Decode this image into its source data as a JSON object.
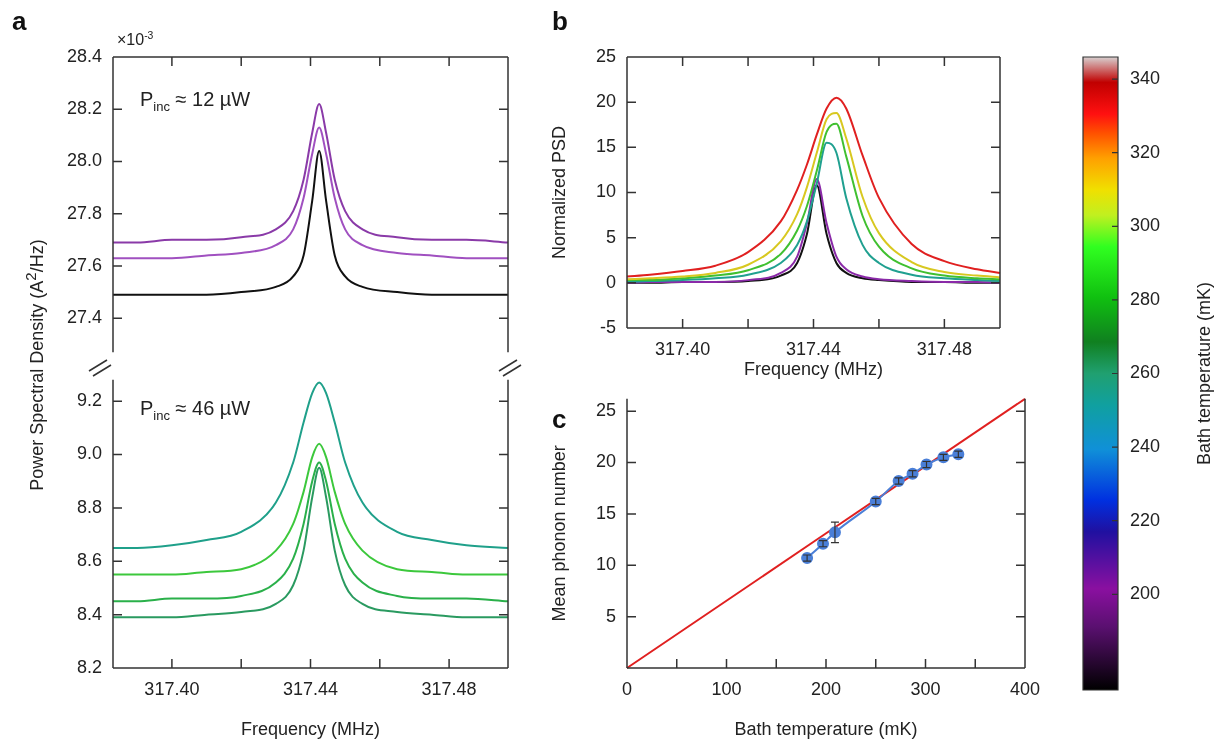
{
  "chart_data": [
    {
      "type": "line",
      "title": "a",
      "ylabel": "Power Spectral Density (A$^{2}$/Hz)",
      "annotations": [
        "P$_{inc}$ ≈ 12 µW",
        "×10$^{-3}$"
      ],
      "marker": "none",
      "legend": false,
      "tick_labels": "y",
      "xlim": [
        317.383,
        317.497
      ],
      "xticks": [
        {
          "value": 317.4,
          "label": null
        },
        {
          "value": 317.42,
          "label": null
        },
        {
          "value": 317.44,
          "label": null
        },
        {
          "value": 317.46,
          "label": null
        },
        {
          "value": 317.48,
          "label": null
        }
      ],
      "ylim": [
        27.27,
        28.4
      ],
      "yticks": [
        27.4,
        27.6,
        27.8,
        {
          "value": 28,
          "label": "28.0"
        },
        28.2,
        28.4
      ],
      "x": [
        317.383,
        317.39,
        317.4,
        317.41,
        317.42,
        317.43,
        317.435,
        317.438,
        317.4405,
        317.4425,
        317.4445,
        317.447,
        317.45,
        317.455,
        317.465,
        317.475,
        317.485,
        317.497
      ],
      "series": [
        {
          "color": "#8a3aa8",
          "values": [
            27.69,
            27.69,
            27.7,
            27.7,
            27.71,
            27.74,
            27.81,
            27.93,
            28.11,
            28.22,
            28.11,
            27.93,
            27.81,
            27.74,
            27.71,
            27.7,
            27.7,
            27.69
          ]
        },
        {
          "color": "#a050c0",
          "values": [
            27.63,
            27.63,
            27.63,
            27.64,
            27.65,
            27.68,
            27.74,
            27.86,
            28.03,
            28.13,
            28.03,
            27.86,
            27.74,
            27.68,
            27.65,
            27.64,
            27.63,
            27.63
          ]
        },
        {
          "color": "#111111",
          "values": [
            27.49,
            27.49,
            27.49,
            27.49,
            27.5,
            27.52,
            27.56,
            27.64,
            27.85,
            28.04,
            27.85,
            27.64,
            27.56,
            27.52,
            27.5,
            27.49,
            27.49,
            27.49
          ]
        }
      ]
    },
    {
      "type": "line",
      "xlabel": "Frequency (MHz)",
      "annotations": [
        "P$_{inc}$ ≈ 46 µW"
      ],
      "marker": "none",
      "legend": false,
      "xlim": [
        317.383,
        317.497
      ],
      "xticks": [
        {
          "value": 317.4,
          "label": "317.40"
        },
        {
          "value": 317.42,
          "label": null
        },
        317.44,
        {
          "value": 317.46,
          "label": null
        },
        317.48
      ],
      "ylim": [
        8.2,
        9.28
      ],
      "yticks": [
        8.2,
        8.4,
        8.6,
        8.8,
        {
          "value": 9,
          "label": "9.0"
        },
        9.2
      ],
      "x": [
        317.383,
        317.39,
        317.4,
        317.41,
        317.42,
        317.43,
        317.435,
        317.438,
        317.4405,
        317.4425,
        317.4445,
        317.447,
        317.45,
        317.455,
        317.465,
        317.475,
        317.485,
        317.497
      ],
      "series": [
        {
          "color": "#1fa08a",
          "values": [
            8.65,
            8.65,
            8.66,
            8.68,
            8.71,
            8.82,
            8.97,
            9.12,
            9.23,
            9.27,
            9.23,
            9.12,
            8.97,
            8.82,
            8.71,
            8.68,
            8.66,
            8.65
          ]
        },
        {
          "color": "#3cc83c",
          "values": [
            8.55,
            8.55,
            8.55,
            8.56,
            8.57,
            8.64,
            8.74,
            8.86,
            8.99,
            9.04,
            8.99,
            8.86,
            8.74,
            8.64,
            8.57,
            8.56,
            8.55,
            8.55
          ]
        },
        {
          "color": "#2ab04a",
          "values": [
            8.45,
            8.45,
            8.46,
            8.46,
            8.47,
            8.52,
            8.61,
            8.74,
            8.9,
            8.97,
            8.9,
            8.74,
            8.61,
            8.52,
            8.47,
            8.46,
            8.46,
            8.45
          ]
        },
        {
          "color": "#2a9a60",
          "values": [
            8.39,
            8.39,
            8.39,
            8.4,
            8.41,
            8.44,
            8.51,
            8.64,
            8.84,
            8.95,
            8.84,
            8.64,
            8.51,
            8.44,
            8.41,
            8.4,
            8.39,
            8.39
          ]
        }
      ]
    },
    {
      "type": "line",
      "title": "b",
      "xlabel": "Frequency (MHz)",
      "ylabel": "Normalized PSD",
      "clabel": "Bath temperature (mK)",
      "clim": [
        174,
        346
      ],
      "cticks": [
        200,
        220,
        240,
        260,
        280,
        300,
        320,
        340
      ],
      "marker": "none",
      "legend": false,
      "xlim": [
        317.383,
        317.497
      ],
      "xticks": [
        {
          "value": 317.4,
          "label": "317.40"
        },
        {
          "value": 317.42,
          "label": null
        },
        317.44,
        {
          "value": 317.46,
          "label": null
        },
        317.48
      ],
      "ylim": [
        -5,
        25
      ],
      "yticks": [
        -5,
        0,
        5,
        10,
        15,
        20,
        25
      ],
      "x": [
        317.383,
        317.39,
        317.4,
        317.41,
        317.42,
        317.43,
        317.435,
        317.438,
        317.441,
        317.444,
        317.447,
        317.45,
        317.455,
        317.46,
        317.47,
        317.48,
        317.49,
        317.497
      ],
      "series": [
        {
          "color": "#e02020",
          "values": [
            0.7,
            0.9,
            1.3,
            1.9,
            3.4,
            6.8,
            10.3,
            13.1,
            16.4,
            19.3,
            20.5,
            19.3,
            14.1,
            9.4,
            4.3,
            2.4,
            1.5,
            1.1
          ]
        },
        {
          "color": "#d8c820",
          "values": [
            0.4,
            0.5,
            0.7,
            1.1,
            2.0,
            4.6,
            7.6,
            10.6,
            14.4,
            18.1,
            18.8,
            16.0,
            9.5,
            5.5,
            2.3,
            1.2,
            0.8,
            0.6
          ]
        },
        {
          "color": "#40c030",
          "values": [
            0.3,
            0.3,
            0.5,
            0.8,
            1.4,
            3.2,
            5.8,
            8.5,
            12.4,
            16.7,
            17.6,
            14.0,
            7.4,
            4.0,
            1.6,
            0.8,
            0.5,
            0.4
          ]
        },
        {
          "color": "#20a090",
          "values": [
            0.1,
            0.2,
            0.3,
            0.5,
            0.9,
            2.2,
            4.2,
            6.8,
            11.0,
            15.5,
            14.4,
            9.4,
            4.2,
            2.2,
            0.9,
            0.5,
            0.3,
            0.2
          ]
        },
        {
          "color": "#8a2aa8",
          "values": [
            0.0,
            0.1,
            0.1,
            0.1,
            0.3,
            1.1,
            2.9,
            6.6,
            11.5,
            6.6,
            2.9,
            1.5,
            0.7,
            0.4,
            0.2,
            0.1,
            0.1,
            0.0
          ]
        },
        {
          "color": "#111111",
          "values": [
            0.0,
            0.0,
            0.1,
            0.1,
            0.2,
            0.8,
            2.2,
            5.4,
            10.8,
            5.4,
            2.2,
            1.1,
            0.5,
            0.3,
            0.1,
            0.1,
            0.0,
            0.0
          ]
        }
      ]
    },
    {
      "type": "line",
      "title": "c",
      "xlabel": "Bath temperature (mK)",
      "ylabel": "Mean phonon number",
      "legend": false,
      "xlim": [
        0,
        400
      ],
      "xticks": [
        0,
        {
          "value": 50,
          "label": null
        },
        100,
        {
          "value": 150,
          "label": null
        },
        200,
        {
          "value": 250,
          "label": null
        },
        300,
        {
          "value": 350,
          "label": null
        },
        400
      ],
      "ylim": [
        0,
        26.2
      ],
      "yticks": [
        5,
        10,
        15,
        20,
        25
      ],
      "series": [
        {
          "marker": "circle",
          "color": "#4a7fd8",
          "x": [
            181,
            197,
            209,
            250,
            273,
            287,
            301,
            318,
            333
          ],
          "values": [
            10.7,
            12.1,
            13.2,
            16.2,
            18.2,
            18.9,
            19.8,
            20.5,
            20.8
          ],
          "errors": [
            0.3,
            0.3,
            1.0,
            0.3,
            0.3,
            0.3,
            0.3,
            0.3,
            0.3
          ]
        },
        {
          "marker": "none",
          "color": "#e02020",
          "x": [
            0,
            400
          ],
          "values": [
            0,
            26.2
          ]
        }
      ]
    }
  ]
}
